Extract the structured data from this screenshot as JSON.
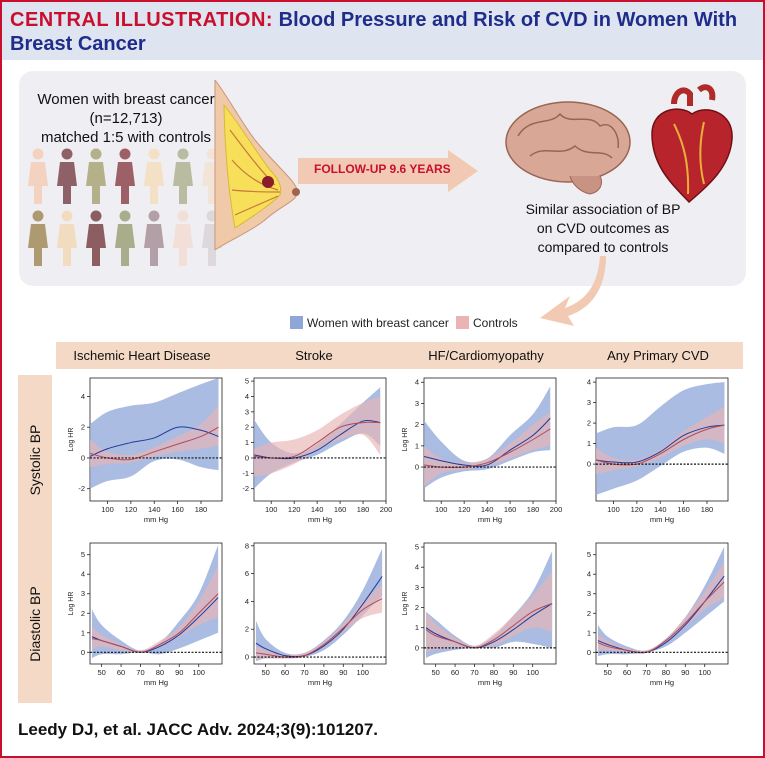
{
  "header": {
    "label": "CENTRAL ILLUSTRATION:",
    "title_line1": "Blood Pressure and Risk of CVD in Women With",
    "title_line2": "Breast Cancer"
  },
  "study": {
    "line1": "Women with breast cancer",
    "line2": "(n=12,713)",
    "line3": "matched 1:5 with controls"
  },
  "followup": "FOLLOW-UP 9.6 YEARS",
  "outcome": {
    "line1": "Similar association of BP",
    "line2": "on CVD outcomes as",
    "line3": "compared to controls"
  },
  "legend": {
    "cases": "Women with breast cancer",
    "controls": "Controls"
  },
  "colors": {
    "cases": "#8ea6d8",
    "cases_line": "#1f3a9a",
    "controls": "#eab4b4",
    "controls_line": "#b04a5a",
    "accent": "#c8102e",
    "title": "#1f2d8a",
    "band": "#f4d9c6"
  },
  "columns": [
    "Ischemic Heart Disease",
    "Stroke",
    "HF/Cardiomyopathy",
    "Any Primary CVD"
  ],
  "rows": [
    "Systolic BP",
    "Diastolic BP"
  ],
  "citation": "Leedy DJ, et al. JACC Adv. 2024;3(9):101207.",
  "chart_data": [
    {
      "type": "line",
      "row": "Systolic BP",
      "outcome": "Ischemic Heart Disease",
      "xlabel": "mm Hg",
      "ylabel": "Log HR",
      "x": [
        85,
        100,
        120,
        140,
        160,
        180,
        195
      ],
      "xticks": [
        100,
        120,
        140,
        160,
        180
      ],
      "xlim": [
        85,
        198
      ],
      "ylim": [
        -2.8,
        5.2
      ],
      "yticks": [
        -2,
        0,
        2,
        4
      ],
      "series": [
        {
          "name": "Women with breast cancer",
          "values": [
            0.1,
            0.6,
            1.0,
            1.3,
            2.0,
            1.8,
            1.4
          ],
          "lower": [
            -2,
            -1.5,
            -1.2,
            -0.2,
            -0.1,
            -0.6,
            -0.8
          ],
          "upper": [
            2.2,
            3.0,
            3.4,
            3.6,
            4.2,
            4.8,
            5.2
          ]
        },
        {
          "name": "Controls",
          "values": [
            0.3,
            0.0,
            -0.1,
            0.4,
            0.9,
            1.4,
            2.0
          ],
          "lower": [
            -0.6,
            -0.4,
            -0.3,
            0.1,
            0.4,
            0.6,
            0.8
          ],
          "upper": [
            1.2,
            0.4,
            0.2,
            0.7,
            1.4,
            2.2,
            3.4
          ]
        }
      ]
    },
    {
      "type": "line",
      "row": "Systolic BP",
      "outcome": "Stroke",
      "xlabel": "mm Hg",
      "ylabel": "Log HR",
      "x": [
        85,
        100,
        120,
        140,
        160,
        180,
        195
      ],
      "xticks": [
        100,
        120,
        140,
        160,
        180,
        200
      ],
      "xlim": [
        85,
        200
      ],
      "ylim": [
        -2.8,
        5.2
      ],
      "yticks": [
        -2,
        -1,
        0,
        1,
        2,
        3,
        4,
        5
      ],
      "series": [
        {
          "name": "Women with breast cancer",
          "values": [
            0.2,
            0.0,
            0.0,
            0.5,
            1.5,
            2.4,
            2.3
          ],
          "lower": [
            -2,
            -1.0,
            -0.3,
            0.2,
            1.0,
            1.6,
            0.8
          ],
          "upper": [
            2.5,
            1.0,
            0.3,
            0.9,
            2.2,
            3.6,
            4.6
          ]
        },
        {
          "name": "Controls",
          "values": [
            0.1,
            0.0,
            0.1,
            1.0,
            2.0,
            2.3,
            2.3
          ],
          "lower": [
            -1.2,
            -1.0,
            -0.4,
            0.5,
            1.2,
            1.5,
            0.2
          ],
          "upper": [
            0.6,
            1.0,
            1.2,
            1.8,
            2.8,
            3.6,
            4.0
          ]
        }
      ]
    },
    {
      "type": "line",
      "row": "Systolic BP",
      "outcome": "HF/Cardiomyopathy",
      "xlabel": "mm Hg",
      "ylabel": "Log HR",
      "x": [
        85,
        100,
        120,
        140,
        160,
        180,
        195
      ],
      "xticks": [
        100,
        120,
        140,
        160,
        180,
        200
      ],
      "xlim": [
        85,
        200
      ],
      "ylim": [
        -1.6,
        4.2
      ],
      "yticks": [
        0,
        1,
        2,
        3,
        4
      ],
      "series": [
        {
          "name": "Women with breast cancer",
          "values": [
            0.5,
            0.3,
            0.1,
            0.1,
            0.8,
            1.5,
            2.3
          ],
          "lower": [
            -1.0,
            -0.5,
            -0.2,
            -0.1,
            0.3,
            0.7,
            0.8
          ],
          "upper": [
            2.2,
            1.2,
            0.3,
            0.4,
            1.5,
            2.5,
            3.8
          ]
        },
        {
          "name": "Controls",
          "values": [
            0.1,
            0.0,
            0.0,
            0.2,
            0.7,
            1.3,
            1.8
          ],
          "lower": [
            -0.9,
            -0.3,
            -0.1,
            0.05,
            0.4,
            0.8,
            1.0
          ],
          "upper": [
            1.0,
            0.4,
            0.2,
            0.4,
            1.1,
            2.0,
            2.6
          ]
        }
      ]
    },
    {
      "type": "line",
      "row": "Systolic BP",
      "outcome": "Any Primary CVD",
      "xlabel": "mm Hg",
      "ylabel": "Log HR",
      "x": [
        85,
        100,
        120,
        140,
        160,
        180,
        195
      ],
      "xticks": [
        100,
        120,
        140,
        160,
        180
      ],
      "xlim": [
        85,
        198
      ],
      "ylim": [
        -1.8,
        4.2
      ],
      "yticks": [
        0,
        1,
        2,
        3,
        4
      ],
      "series": [
        {
          "name": "Women with breast cancer",
          "values": [
            0.2,
            0.1,
            0.1,
            0.6,
            1.4,
            1.8,
            1.9
          ],
          "lower": [
            -1.5,
            -1.2,
            -0.8,
            -0.1,
            0.6,
            0.8,
            0.5
          ],
          "upper": [
            1.5,
            1.8,
            1.9,
            2.8,
            3.6,
            3.9,
            4.0
          ]
        },
        {
          "name": "Controls",
          "values": [
            0.2,
            0.0,
            0.0,
            0.5,
            1.2,
            1.7,
            1.9
          ],
          "lower": [
            -0.5,
            -0.3,
            -0.1,
            0.3,
            0.9,
            1.2,
            1.0
          ],
          "upper": [
            0.8,
            0.3,
            0.2,
            0.7,
            1.6,
            2.3,
            2.8
          ]
        }
      ]
    },
    {
      "type": "line",
      "row": "Diastolic BP",
      "outcome": "Ischemic Heart Disease",
      "xlabel": "mm Hg",
      "ylabel": "Log HR",
      "x": [
        45,
        50,
        60,
        70,
        80,
        90,
        100,
        110
      ],
      "xticks": [
        50,
        60,
        70,
        80,
        90,
        100
      ],
      "xlim": [
        44,
        112
      ],
      "ylim": [
        -0.6,
        5.6
      ],
      "yticks": [
        0,
        1,
        2,
        3,
        4,
        5
      ],
      "series": [
        {
          "name": "Women with breast cancer",
          "values": [
            0.8,
            0.6,
            0.3,
            0.0,
            0.3,
            0.9,
            1.8,
            2.8
          ],
          "lower": [
            -0.3,
            -0.1,
            -0.1,
            0.0,
            -0.1,
            0.2,
            0.6,
            1.0
          ],
          "upper": [
            2.2,
            1.4,
            0.6,
            0.1,
            0.5,
            1.6,
            3.0,
            5.5
          ]
        },
        {
          "name": "Controls",
          "values": [
            0.7,
            0.6,
            0.3,
            0.0,
            0.4,
            1.0,
            2.0,
            3.0
          ],
          "lower": [
            0.2,
            0.3,
            0.1,
            0.0,
            0.3,
            0.8,
            1.4,
            1.8
          ],
          "upper": [
            1.3,
            0.9,
            0.4,
            0.1,
            0.6,
            1.3,
            2.6,
            4.4
          ]
        }
      ]
    },
    {
      "type": "line",
      "row": "Diastolic BP",
      "outcome": "Stroke",
      "xlabel": "mm Hg",
      "ylabel": "Log HR",
      "x": [
        45,
        50,
        60,
        70,
        80,
        90,
        100,
        110
      ],
      "xticks": [
        50,
        60,
        70,
        80,
        90,
        100
      ],
      "xlim": [
        44,
        112
      ],
      "ylim": [
        -0.5,
        8.2
      ],
      "yticks": [
        0,
        2,
        4,
        6,
        8
      ],
      "series": [
        {
          "name": "Women with breast cancer",
          "values": [
            1.0,
            0.6,
            0.1,
            0.1,
            0.8,
            2.0,
            3.8,
            5.8
          ],
          "lower": [
            -0.3,
            -0.1,
            -0.1,
            0.0,
            0.5,
            1.6,
            3.0,
            4.4
          ],
          "upper": [
            2.6,
            1.3,
            0.3,
            0.3,
            1.2,
            2.6,
            4.8,
            7.8
          ]
        },
        {
          "name": "Controls",
          "values": [
            0.3,
            0.2,
            0.0,
            0.1,
            0.9,
            2.1,
            3.4,
            4.2
          ],
          "lower": [
            -0.2,
            -0.1,
            -0.1,
            0.0,
            0.7,
            1.8,
            2.8,
            3.2
          ],
          "upper": [
            0.8,
            0.5,
            0.2,
            0.3,
            1.1,
            2.4,
            4.0,
            5.2
          ]
        }
      ]
    },
    {
      "type": "line",
      "row": "Diastolic BP",
      "outcome": "HF/Cardiomyopathy",
      "xlabel": "mm Hg",
      "ylabel": "Log HR",
      "x": [
        45,
        50,
        60,
        70,
        80,
        90,
        100,
        110
      ],
      "xticks": [
        50,
        60,
        70,
        80,
        90,
        100
      ],
      "xlim": [
        44,
        112
      ],
      "ylim": [
        -0.8,
        5.2
      ],
      "yticks": [
        0,
        1,
        2,
        3,
        4,
        5
      ],
      "series": [
        {
          "name": "Women with breast cancer",
          "values": [
            1.0,
            0.7,
            0.3,
            0.0,
            0.3,
            0.9,
            1.6,
            2.2
          ],
          "lower": [
            -0.5,
            -0.3,
            -0.1,
            0.0,
            0.0,
            0.3,
            0.2,
            0.0
          ],
          "upper": [
            1.8,
            1.4,
            0.6,
            0.1,
            0.6,
            1.6,
            2.8,
            4.8
          ]
        },
        {
          "name": "Controls",
          "values": [
            0.9,
            0.6,
            0.3,
            0.0,
            0.4,
            1.1,
            1.8,
            2.2
          ],
          "lower": [
            -0.2,
            -0.1,
            0.0,
            0.0,
            0.1,
            0.6,
            1.0,
            0.8
          ],
          "upper": [
            1.8,
            1.2,
            0.5,
            0.1,
            0.7,
            1.6,
            2.6,
            3.8
          ]
        }
      ]
    },
    {
      "type": "line",
      "row": "Diastolic BP",
      "outcome": "Any Primary CVD",
      "xlabel": "mm Hg",
      "ylabel": "Log HR",
      "x": [
        45,
        50,
        60,
        70,
        80,
        90,
        100,
        110
      ],
      "xticks": [
        50,
        60,
        70,
        80,
        90,
        100
      ],
      "xlim": [
        44,
        112
      ],
      "ylim": [
        -0.6,
        5.6
      ],
      "yticks": [
        0,
        1,
        2,
        3,
        4,
        5
      ],
      "series": [
        {
          "name": "Women with breast cancer",
          "values": [
            0.6,
            0.4,
            0.1,
            0.0,
            0.5,
            1.4,
            2.6,
            3.9
          ],
          "lower": [
            -0.2,
            -0.1,
            -0.1,
            0.0,
            0.3,
            1.0,
            1.8,
            2.6
          ],
          "upper": [
            1.4,
            0.8,
            0.3,
            0.1,
            0.7,
            1.8,
            3.4,
            5.4
          ]
        },
        {
          "name": "Controls",
          "values": [
            0.5,
            0.3,
            0.1,
            0.0,
            0.6,
            1.5,
            2.6,
            3.6
          ],
          "lower": [
            0.1,
            0.1,
            0.0,
            0.0,
            0.5,
            1.3,
            2.2,
            2.8
          ],
          "upper": [
            0.9,
            0.6,
            0.2,
            0.1,
            0.7,
            1.8,
            3.1,
            4.6
          ]
        }
      ]
    }
  ]
}
